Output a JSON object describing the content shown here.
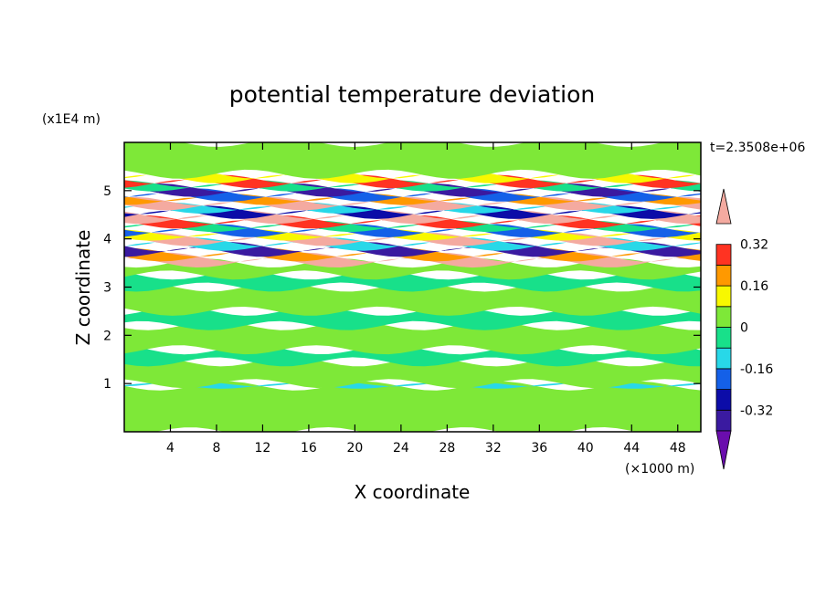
{
  "chart_data": {
    "type": "heatmap",
    "title": "potential temperature deviation",
    "xlabel": "X coordinate",
    "ylabel": "Z coordinate",
    "x_unit": "(×1000 m)",
    "y_unit": "(x1E4 m)",
    "time_label": "t=2.3508e+06",
    "xlim": [
      0,
      50
    ],
    "ylim": [
      0,
      6
    ],
    "x_ticks": [
      "4",
      "8",
      "12",
      "16",
      "20",
      "24",
      "28",
      "32",
      "36",
      "40",
      "44",
      "48"
    ],
    "y_ticks": [
      "1",
      "2",
      "3",
      "4",
      "5"
    ],
    "colorbar": {
      "levels": [
        -0.4,
        -0.32,
        -0.24,
        -0.16,
        -0.08,
        0,
        0.08,
        0.16,
        0.24,
        0.32,
        0.4
      ],
      "labels": [
        "0.32",
        "0.16",
        "0",
        "-0.16",
        "-0.32"
      ],
      "label_values": [
        0.32,
        0.16,
        0,
        -0.16,
        -0.32
      ],
      "colors": [
        "#6a0dad",
        "#3a1aa0",
        "#0c0ca8",
        "#1460e8",
        "#28d8e8",
        "#18e08a",
        "#7ee838",
        "#f8f800",
        "#ff9900",
        "#ff3322",
        "#f4aaa0"
      ],
      "extend": "both"
    },
    "bands": [
      {
        "z": 0.0,
        "h": 0.95,
        "level": 6
      },
      {
        "z": 0.95,
        "h": 0.05,
        "level": 4
      },
      {
        "z": 1.0,
        "h": 0.45,
        "level": 6
      },
      {
        "z": 1.45,
        "h": 0.25,
        "level": 5
      },
      {
        "z": 1.7,
        "h": 0.5,
        "level": 6
      },
      {
        "z": 2.2,
        "h": 0.3,
        "level": 5
      },
      {
        "z": 2.5,
        "h": 0.5,
        "level": 6
      },
      {
        "z": 3.0,
        "h": 0.25,
        "level": 5
      },
      {
        "z": 3.25,
        "h": 0.25,
        "level": 6
      },
      {
        "z": 3.5,
        "h": 0.12,
        "level": 10
      },
      {
        "z": 3.62,
        "h": 0.1,
        "level": 8
      },
      {
        "z": 3.72,
        "h": 0.12,
        "level": 1
      },
      {
        "z": 3.84,
        "h": 0.1,
        "level": 4
      },
      {
        "z": 3.94,
        "h": 0.1,
        "level": 10
      },
      {
        "z": 4.04,
        "h": 0.08,
        "level": 7
      },
      {
        "z": 4.12,
        "h": 0.1,
        "level": 3
      },
      {
        "z": 4.22,
        "h": 0.08,
        "level": 5
      },
      {
        "z": 4.3,
        "h": 0.1,
        "level": 9
      },
      {
        "z": 4.4,
        "h": 0.1,
        "level": 10
      },
      {
        "z": 4.5,
        "h": 0.1,
        "level": 2
      },
      {
        "z": 4.6,
        "h": 0.08,
        "level": 4
      },
      {
        "z": 4.68,
        "h": 0.1,
        "level": 10
      },
      {
        "z": 4.78,
        "h": 0.08,
        "level": 8
      },
      {
        "z": 4.86,
        "h": 0.1,
        "level": 3
      },
      {
        "z": 4.96,
        "h": 0.1,
        "level": 1
      },
      {
        "z": 5.06,
        "h": 0.08,
        "level": 5
      },
      {
        "z": 5.14,
        "h": 0.1,
        "level": 9
      },
      {
        "z": 5.24,
        "h": 0.1,
        "level": 7
      },
      {
        "z": 5.34,
        "h": 0.66,
        "level": 6
      }
    ]
  }
}
